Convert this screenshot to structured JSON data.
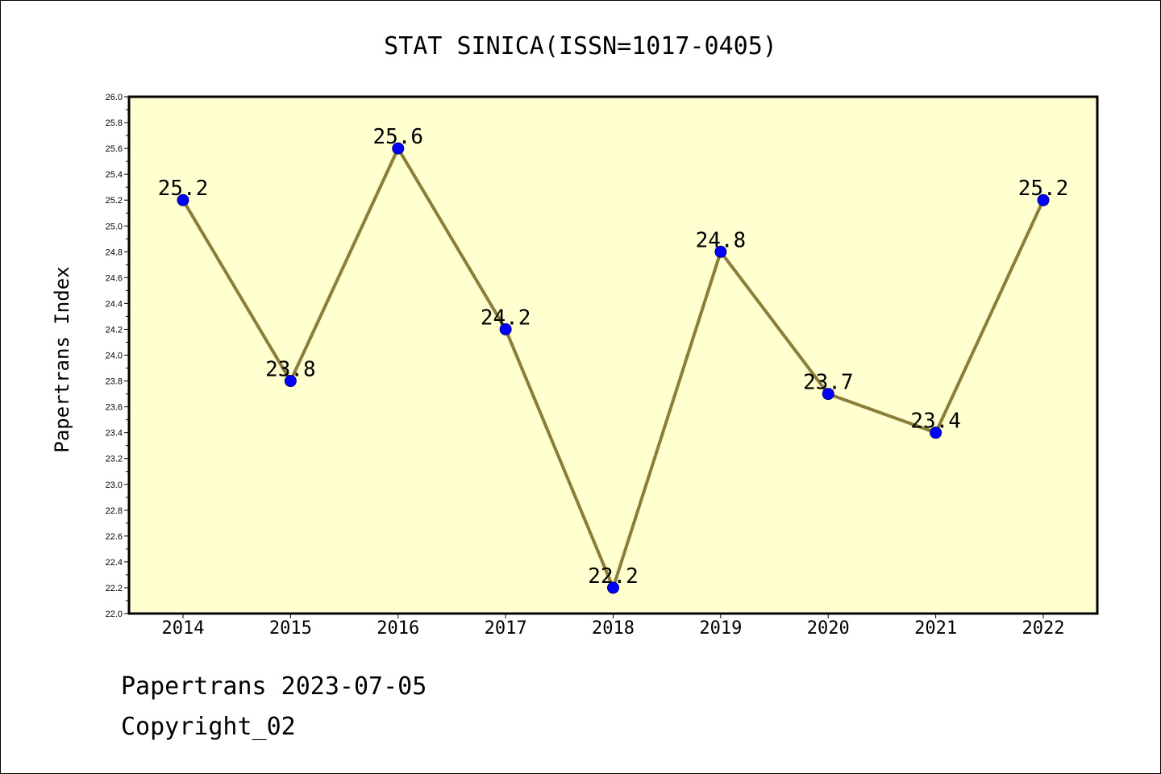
{
  "chart_data": {
    "type": "line",
    "title": "STAT SINICA(ISSN=1017-0405)",
    "xlabel": "",
    "ylabel": "Papertrans Index",
    "categories": [
      "2014",
      "2015",
      "2016",
      "2017",
      "2018",
      "2019",
      "2020",
      "2021",
      "2022"
    ],
    "series": [
      {
        "values": [
          25.2,
          23.8,
          25.6,
          24.2,
          22.2,
          24.8,
          23.7,
          23.4,
          25.2
        ],
        "data_labels": [
          "25.2",
          "23.8",
          "25.6",
          "24.2",
          "22.2",
          "24.8",
          "23.7",
          "23.4",
          "25.2"
        ]
      }
    ],
    "ylim": [
      22.0,
      26.0
    ],
    "yticks": [
      "22.0",
      "22.2",
      "22.4",
      "22.6",
      "22.8",
      "23.0",
      "23.2",
      "23.4",
      "23.6",
      "23.8",
      "24.0",
      "24.2",
      "24.4",
      "24.6",
      "24.8",
      "25.0",
      "25.2",
      "25.4",
      "25.6",
      "25.8",
      "26.0"
    ],
    "grid": false,
    "legend": "none",
    "colors": {
      "plot_background": "#ffffd0",
      "line": "#8b7d3a",
      "marker": "#0000ff",
      "marker_edge": "#000080"
    }
  },
  "footer": {
    "source": "Papertrans 2023-07-05",
    "copyright": "Copyright_02"
  }
}
